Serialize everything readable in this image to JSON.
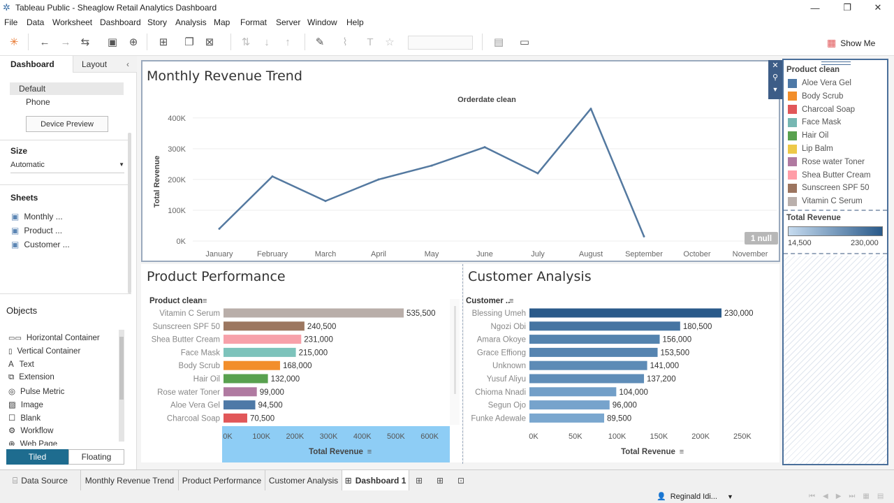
{
  "window": {
    "title": "Tableau Public - Sheaglow Retail Analytics Dashboard"
  },
  "menu": [
    "File",
    "Data",
    "Worksheet",
    "Dashboard",
    "Story",
    "Analysis",
    "Map",
    "Format",
    "Server",
    "Window",
    "Help"
  ],
  "toolbar": {
    "show_me": "Show Me"
  },
  "left": {
    "tabs": {
      "dashboard": "Dashboard",
      "layout": "Layout"
    },
    "devices": {
      "default": "Default",
      "phone": "Phone",
      "preview": "Device Preview"
    },
    "size": {
      "label": "Size",
      "value": "Automatic"
    },
    "sheets": {
      "label": "Sheets",
      "items": [
        "Monthly ...",
        "Product ...",
        "Customer ..."
      ]
    },
    "objects": {
      "label": "Objects",
      "items": [
        "Horizontal Container",
        "Vertical Container",
        "Text",
        "Extension",
        "Pulse Metric",
        "Image",
        "Blank",
        "Workflow",
        "Web Page"
      ]
    },
    "mode": {
      "tiled": "Tiled",
      "floating": "Floating"
    }
  },
  "trend": {
    "title": "Monthly Revenue Trend",
    "header": "Orderdate clean",
    "null_badge": "1 null",
    "chart_data": {
      "type": "line",
      "x": [
        "January",
        "February",
        "March",
        "April",
        "May",
        "June",
        "July",
        "August",
        "September",
        "October",
        "November"
      ],
      "y": [
        40000,
        210000,
        130000,
        200000,
        245000,
        305000,
        220000,
        430000,
        15000,
        null,
        null
      ],
      "ylabel": "Total Revenue",
      "yticks": [
        "0K",
        "100K",
        "200K",
        "300K",
        "400K"
      ],
      "ylim": [
        0,
        450000
      ],
      "color": "#5479a0"
    }
  },
  "product": {
    "title": "Product Performance",
    "header": "Product clean",
    "xlabel": "Total Revenue",
    "chart_data": {
      "type": "bar",
      "categories": [
        "Vitamin C Serum",
        "Sunscreen SPF 50",
        "Shea Butter Cream",
        "Face Mask",
        "Body Scrub",
        "Hair Oil",
        "Rose water Toner",
        "Aloe Vera Gel",
        "Charcoal Soap"
      ],
      "values": [
        535500,
        240500,
        231000,
        215000,
        168000,
        132000,
        99000,
        94500,
        70500
      ],
      "labels": [
        "535,500",
        "240,500",
        "231,000",
        "215,000",
        "168,000",
        "132,000",
        "99,000",
        "94,500",
        "70,500"
      ],
      "colors": [
        "#b9aea9",
        "#9c7760",
        "#f7a1aa",
        "#7dc3bb",
        "#f28e2b",
        "#59a14f",
        "#b07aa1",
        "#4e79a7",
        "#e15759"
      ],
      "xticks": [
        "0K",
        "100K",
        "200K",
        "300K",
        "400K",
        "500K",
        "600K"
      ],
      "xlim": [
        0,
        600000
      ]
    }
  },
  "customer": {
    "title": "Customer Analysis",
    "header": "Customer ..",
    "xlabel": "Total Revenue",
    "chart_data": {
      "type": "bar",
      "categories": [
        "Blessing Umeh",
        "Ngozi Obi",
        "Amara Okoye",
        "Grace Effiong",
        "Unknown",
        "Yusuf Aliyu",
        "Chioma Nnadi",
        "Segun Ojo",
        "Funke Adewale"
      ],
      "values": [
        230000,
        180500,
        156000,
        153500,
        141000,
        137200,
        104000,
        96000,
        89500
      ],
      "labels": [
        "230,000",
        "180,500",
        "156,000",
        "153,500",
        "141,000",
        "137,200",
        "104,000",
        "96,000",
        "89,500"
      ],
      "xticks": [
        "0K",
        "50K",
        "100K",
        "150K",
        "200K",
        "250K"
      ],
      "xlim": [
        0,
        250000
      ]
    }
  },
  "legend": {
    "title": "Product clean",
    "items": [
      {
        "label": "Aloe Vera Gel",
        "color": "#4e79a7"
      },
      {
        "label": "Body Scrub",
        "color": "#f28e2b"
      },
      {
        "label": "Charcoal Soap",
        "color": "#e15759"
      },
      {
        "label": "Face Mask",
        "color": "#76b7b2"
      },
      {
        "label": "Hair Oil",
        "color": "#59a14f"
      },
      {
        "label": "Lip Balm",
        "color": "#edc948"
      },
      {
        "label": "Rose water Toner",
        "color": "#b07aa1"
      },
      {
        "label": "Shea Butter Cream",
        "color": "#ff9da7"
      },
      {
        "label": "Sunscreen SPF 50",
        "color": "#9c755f"
      },
      {
        "label": "Vitamin C Serum",
        "color": "#bab0ac"
      }
    ],
    "revenue": {
      "title": "Total Revenue",
      "min": "14,500",
      "max": "230,000"
    }
  },
  "tabs": {
    "datasource": "Data Source",
    "items": [
      "Monthly Revenue Trend",
      "Product Performance",
      "Customer Analysis"
    ],
    "active": "Dashboard 1"
  },
  "status": {
    "user": "Reginald Idi..."
  }
}
